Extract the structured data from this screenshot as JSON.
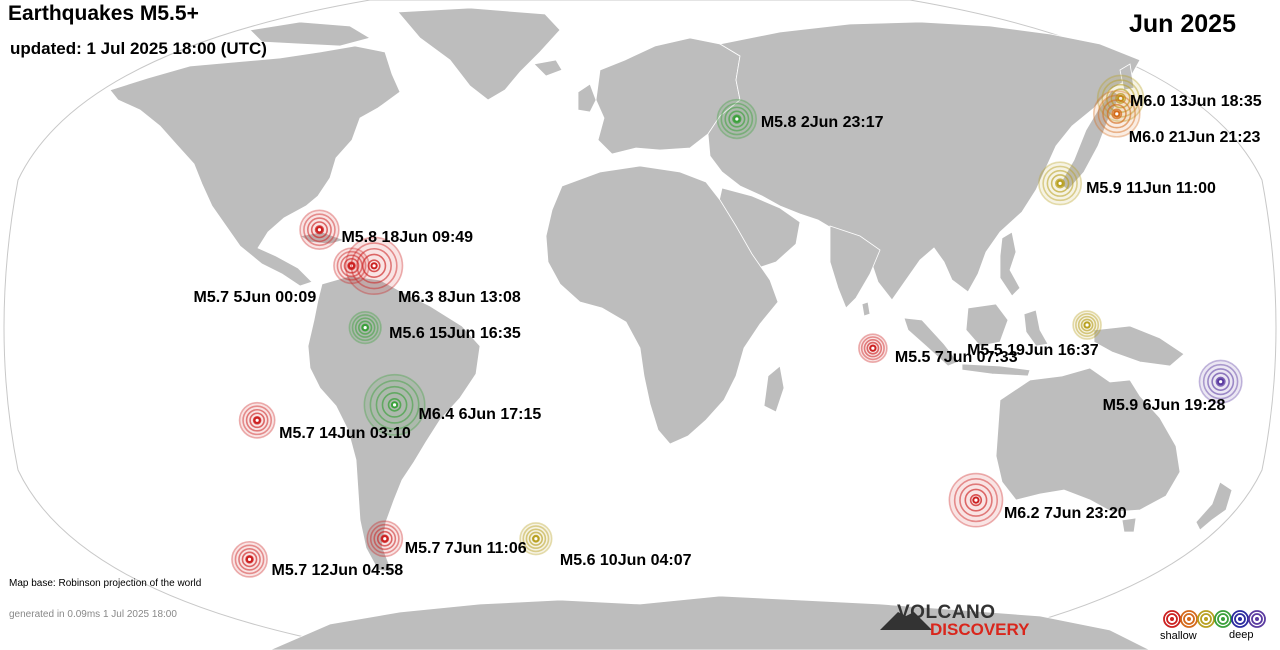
{
  "header": {
    "title": "Earthquakes M5.5+",
    "updated": "updated:  1 Jul 2025 18:00 (UTC)",
    "month": "Jun 2025"
  },
  "footer": {
    "map_base": "Map base: Robinson projection of the world",
    "generated": "generated in 0.09ms  1 Jul 2025 18:00"
  },
  "logo": {
    "line1": "VOLCANO",
    "line2": "DISCOVERY"
  },
  "legend": {
    "shallow": "shallow",
    "deep": "deep",
    "colors": [
      "#cc2020",
      "#d46a1a",
      "#b8a020",
      "#3aa03a",
      "#2a2aa0",
      "#5a3aa0"
    ]
  },
  "colors": {
    "land": "#bdbdbd",
    "ocean": "#ffffff",
    "border": "#ffffff",
    "outline": "#c8c8c8"
  },
  "earthquakes": [
    {
      "label": "M6.0 13Jun 18:35",
      "magnitude": 6.0,
      "lon": 142.2,
      "lat": 40.5,
      "color": "#b8a020"
    },
    {
      "label": "M6.0 21Jun 21:23",
      "magnitude": 6.0,
      "lon": 140.5,
      "lat": 37.5,
      "color": "#d46a1a"
    },
    {
      "label": "M5.8  2Jun 23:17",
      "magnitude": 5.8,
      "lon": 28.5,
      "lat": 36.5,
      "color": "#3aa03a"
    },
    {
      "label": "M5.9 11Jun 11:00",
      "magnitude": 5.9,
      "lon": 122.0,
      "lat": 24.0,
      "color": "#b8a020"
    },
    {
      "label": "M5.8 18Jun 09:49",
      "magnitude": 5.8,
      "lon": -92.5,
      "lat": 15.0,
      "color": "#cc2020"
    },
    {
      "label": "M5.7  5Jun 00:09",
      "magnitude": 5.7,
      "lon": -83.0,
      "lat": 8.0,
      "color": "#cc2020"
    },
    {
      "label": "M6.3  8Jun 13:08",
      "magnitude": 6.3,
      "lon": -76.5,
      "lat": 8.0,
      "color": "#cc2020"
    },
    {
      "label": "M5.6 15Jun 16:35",
      "magnitude": 5.6,
      "lon": -79.0,
      "lat": -4.0,
      "color": "#3aa03a"
    },
    {
      "label": "M6.4  6Jun 17:15",
      "magnitude": 6.4,
      "lon": -71.0,
      "lat": -19.0,
      "color": "#3aa03a"
    },
    {
      "label": "M5.5 19Jun 16:37",
      "magnitude": 5.5,
      "lon": 128.5,
      "lat": -3.5,
      "color": "#b8a020"
    },
    {
      "label": "M5.5  7Jun 07:33",
      "magnitude": 5.5,
      "lon": 67.0,
      "lat": -8.0,
      "color": "#cc2020"
    },
    {
      "label": "M5.9  6Jun 19:28",
      "magnitude": 5.9,
      "lon": 167.5,
      "lat": -14.5,
      "color": "#5a3aa0"
    },
    {
      "label": "M5.7 14Jun 03:10",
      "magnitude": 5.7,
      "lon": -111.0,
      "lat": -22.0,
      "color": "#cc2020"
    },
    {
      "label": "M6.2  7Jun 23:20",
      "magnitude": 6.2,
      "lon": 99.0,
      "lat": -37.5,
      "color": "#cc2020"
    },
    {
      "label": "M5.7  7Jun 11:06",
      "magnitude": 5.7,
      "lon": -76.0,
      "lat": -45.0,
      "color": "#cc2020"
    },
    {
      "label": "M5.6 10Jun 04:07",
      "magnitude": 5.6,
      "lon": -31.0,
      "lat": -45.0,
      "color": "#b8a020"
    },
    {
      "label": "M5.7 12Jun 04:58",
      "magnitude": 5.7,
      "lon": -117.0,
      "lat": -49.0,
      "color": "#cc2020"
    }
  ]
}
